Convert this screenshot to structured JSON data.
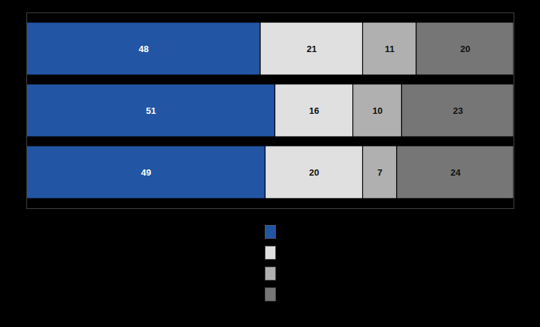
{
  "chart_data": {
    "type": "bar",
    "orientation": "horizontal",
    "stacked": true,
    "categories": [
      null,
      null,
      null
    ],
    "series": [
      {
        "color": "#2255a4",
        "values": [
          48,
          51,
          49
        ]
      },
      {
        "color": "#e0e0e0",
        "values": [
          21,
          16,
          20
        ]
      },
      {
        "color": "#b0b0b0",
        "values": [
          11,
          10,
          7
        ]
      },
      {
        "color": "#767676",
        "values": [
          20,
          23,
          24
        ]
      }
    ],
    "xlim": [
      0,
      100
    ],
    "data_labels": true,
    "tick_labels": false,
    "legend": "bottom"
  }
}
